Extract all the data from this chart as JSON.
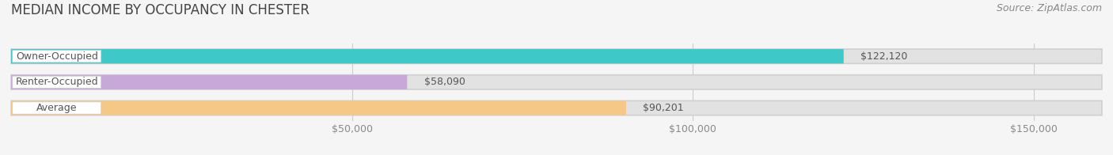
{
  "title": "MEDIAN INCOME BY OCCUPANCY IN CHESTER",
  "source": "Source: ZipAtlas.com",
  "categories": [
    "Owner-Occupied",
    "Renter-Occupied",
    "Average"
  ],
  "values": [
    122120,
    58090,
    90201
  ],
  "bar_colors": [
    "#3ec8c8",
    "#c8a8d8",
    "#f5c888"
  ],
  "value_labels": [
    "$122,120",
    "$58,090",
    "$90,201"
  ],
  "xlim": [
    0,
    160000
  ],
  "xticks": [
    0,
    50000,
    100000,
    150000
  ],
  "xticklabels": [
    "",
    "$50,000",
    "$100,000",
    "$150,000"
  ],
  "title_fontsize": 12,
  "source_fontsize": 9,
  "label_fontsize": 9,
  "bar_height": 0.55,
  "background_color": "#f5f5f5",
  "bar_bg_color": "#e2e2e2",
  "grid_color": "#cccccc"
}
